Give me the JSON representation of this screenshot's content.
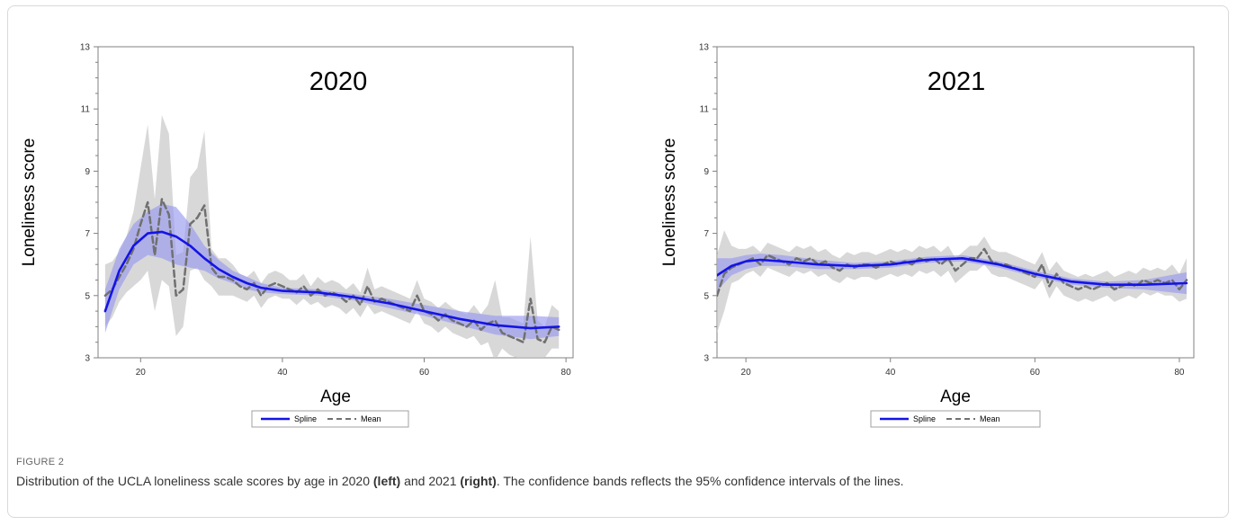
{
  "figure": {
    "label": "FIGURE 2",
    "caption_parts": [
      {
        "text": "Distribution of the UCLA loneliness scale scores by age in 2020 ",
        "bold": false
      },
      {
        "text": "(left)",
        "bold": true
      },
      {
        "text": " and 2021 ",
        "bold": false
      },
      {
        "text": "(right)",
        "bold": true
      },
      {
        "text": ". The confidence bands reflects the 95% confidence intervals of the lines.",
        "bold": false
      }
    ]
  },
  "colors": {
    "spline": "#1414e6",
    "spline_band": "#9a9af0",
    "mean": "#707070",
    "mean_band": "#c8c8c8",
    "axis": "#808080"
  },
  "chart_data": [
    {
      "type": "line",
      "title": "2020",
      "xlabel": "Age",
      "ylabel": "Loneliness score",
      "xlim": [
        14,
        81
      ],
      "ylim": [
        3,
        13
      ],
      "xticks": [
        20,
        40,
        60,
        80
      ],
      "yticks": [
        3,
        5,
        7,
        9,
        11,
        13
      ],
      "legend": {
        "position": "bottom-center",
        "entries": [
          "Spline",
          "Mean"
        ]
      },
      "series": [
        {
          "name": "Spline",
          "style": "solid",
          "x": [
            15,
            17,
            19,
            21,
            23,
            25,
            27,
            29,
            31,
            33,
            35,
            37,
            40,
            45,
            50,
            55,
            60,
            65,
            70,
            75,
            79
          ],
          "y": [
            4.5,
            5.8,
            6.6,
            7.0,
            7.05,
            6.9,
            6.6,
            6.2,
            5.85,
            5.6,
            5.4,
            5.25,
            5.15,
            5.1,
            4.95,
            4.75,
            4.5,
            4.25,
            4.05,
            3.95,
            4.0
          ],
          "ci_lower": [
            3.8,
            5.2,
            6.0,
            6.3,
            6.2,
            6.0,
            5.9,
            5.8,
            5.55,
            5.4,
            5.2,
            5.1,
            5.05,
            5.0,
            4.85,
            4.6,
            4.35,
            4.05,
            3.75,
            3.6,
            3.7
          ],
          "ci_upper": [
            5.2,
            6.5,
            7.3,
            7.7,
            7.95,
            7.85,
            7.3,
            6.6,
            6.15,
            5.8,
            5.6,
            5.4,
            5.25,
            5.2,
            5.05,
            4.9,
            4.7,
            4.5,
            4.35,
            4.35,
            4.3
          ]
        },
        {
          "name": "Mean",
          "style": "dashed",
          "x": [
            15,
            16,
            17,
            18,
            19,
            20,
            21,
            22,
            23,
            24,
            25,
            26,
            27,
            28,
            29,
            30,
            31,
            32,
            33,
            34,
            35,
            36,
            37,
            38,
            39,
            40,
            41,
            42,
            43,
            44,
            45,
            46,
            47,
            48,
            49,
            50,
            51,
            52,
            53,
            54,
            55,
            56,
            57,
            58,
            59,
            60,
            61,
            62,
            63,
            64,
            65,
            66,
            67,
            68,
            69,
            70,
            71,
            72,
            73,
            74,
            75,
            76,
            77,
            78,
            79
          ],
          "y": [
            5.0,
            5.2,
            5.6,
            6.0,
            6.5,
            7.3,
            8.0,
            6.3,
            8.1,
            7.6,
            5.0,
            5.2,
            7.3,
            7.5,
            7.9,
            5.9,
            5.6,
            5.6,
            5.5,
            5.3,
            5.2,
            5.4,
            5.0,
            5.3,
            5.4,
            5.3,
            5.2,
            5.1,
            5.3,
            5.0,
            5.2,
            5.0,
            5.1,
            5.0,
            4.8,
            5.0,
            4.7,
            5.3,
            4.8,
            4.9,
            4.8,
            4.7,
            4.6,
            4.5,
            5.0,
            4.5,
            4.4,
            4.2,
            4.4,
            4.2,
            4.1,
            4.0,
            4.2,
            3.9,
            4.1,
            4.2,
            3.8,
            3.7,
            3.6,
            3.5,
            4.9,
            3.6,
            3.5,
            4.0,
            3.9
          ],
          "ci_lower": [
            4.0,
            4.3,
            4.8,
            5.1,
            5.3,
            5.5,
            5.8,
            4.5,
            5.5,
            5.3,
            3.7,
            4.0,
            5.8,
            5.9,
            5.5,
            5.3,
            5.0,
            5.0,
            5.0,
            4.9,
            4.8,
            5.0,
            4.6,
            4.9,
            5.0,
            4.9,
            4.9,
            4.7,
            4.9,
            4.7,
            4.8,
            4.6,
            4.7,
            4.6,
            4.4,
            4.6,
            4.3,
            4.7,
            4.4,
            4.5,
            4.4,
            4.3,
            4.2,
            4.1,
            4.5,
            4.1,
            4.0,
            3.8,
            4.0,
            3.8,
            3.7,
            3.6,
            3.7,
            3.4,
            3.5,
            2.9,
            3.3,
            3.1,
            3.0,
            2.9,
            3.0,
            3.0,
            3.0,
            3.3,
            3.3
          ],
          "ci_upper": [
            6.0,
            6.1,
            6.4,
            6.9,
            7.7,
            9.1,
            10.5,
            8.1,
            10.8,
            10.2,
            6.3,
            6.4,
            8.8,
            9.1,
            10.3,
            6.5,
            6.2,
            6.2,
            6.0,
            5.7,
            5.6,
            5.8,
            5.4,
            5.7,
            5.8,
            5.7,
            5.5,
            5.5,
            5.7,
            5.3,
            5.6,
            5.4,
            5.5,
            5.4,
            5.2,
            5.4,
            5.1,
            5.9,
            5.2,
            5.3,
            5.2,
            5.1,
            5.0,
            4.9,
            5.5,
            4.9,
            4.8,
            4.6,
            4.8,
            4.6,
            4.5,
            4.4,
            4.7,
            4.4,
            4.7,
            5.5,
            4.3,
            4.3,
            4.2,
            4.1,
            6.9,
            4.2,
            4.0,
            4.7,
            4.5
          ]
        }
      ]
    },
    {
      "type": "line",
      "title": "2021",
      "xlabel": "Age",
      "ylabel": "Loneliness score",
      "xlim": [
        16,
        82
      ],
      "ylim": [
        3,
        13
      ],
      "xticks": [
        20,
        40,
        60,
        80
      ],
      "yticks": [
        3,
        5,
        7,
        9,
        11,
        13
      ],
      "legend": {
        "position": "bottom-center",
        "entries": [
          "Spline",
          "Mean"
        ]
      },
      "series": [
        {
          "name": "Spline",
          "style": "solid",
          "x": [
            16,
            18,
            20,
            22,
            25,
            30,
            35,
            40,
            45,
            50,
            55,
            60,
            65,
            70,
            75,
            81
          ],
          "y": [
            5.65,
            5.95,
            6.1,
            6.15,
            6.1,
            6.0,
            5.95,
            6.0,
            6.15,
            6.2,
            6.0,
            5.7,
            5.45,
            5.35,
            5.35,
            5.4
          ],
          "ci_lower": [
            5.15,
            5.65,
            5.85,
            5.95,
            5.95,
            5.85,
            5.85,
            5.9,
            6.05,
            6.1,
            5.9,
            5.6,
            5.35,
            5.25,
            5.2,
            5.05
          ],
          "ci_upper": [
            6.2,
            6.2,
            6.3,
            6.35,
            6.3,
            6.15,
            6.05,
            6.1,
            6.25,
            6.3,
            6.1,
            5.8,
            5.55,
            5.45,
            5.5,
            5.75
          ]
        },
        {
          "name": "Mean",
          "style": "dashed",
          "x": [
            16,
            17,
            18,
            19,
            20,
            21,
            22,
            23,
            24,
            25,
            26,
            27,
            28,
            29,
            30,
            31,
            32,
            33,
            34,
            35,
            36,
            37,
            38,
            39,
            40,
            41,
            42,
            43,
            44,
            45,
            46,
            47,
            48,
            49,
            50,
            51,
            52,
            53,
            54,
            55,
            56,
            57,
            58,
            59,
            60,
            61,
            62,
            63,
            64,
            65,
            66,
            67,
            68,
            69,
            70,
            71,
            72,
            73,
            74,
            75,
            76,
            77,
            78,
            79,
            80,
            81
          ],
          "y": [
            5.0,
            5.7,
            5.9,
            6.0,
            6.1,
            6.2,
            6.0,
            6.3,
            6.2,
            6.1,
            6.0,
            6.2,
            6.1,
            6.2,
            6.0,
            6.1,
            5.9,
            5.8,
            6.0,
            5.9,
            6.0,
            6.0,
            5.9,
            6.0,
            6.1,
            6.0,
            6.1,
            6.0,
            6.2,
            6.1,
            6.2,
            6.0,
            6.2,
            5.8,
            6.0,
            6.2,
            6.2,
            6.5,
            6.1,
            6.0,
            6.0,
            5.9,
            5.8,
            5.7,
            5.6,
            6.0,
            5.3,
            5.7,
            5.4,
            5.3,
            5.2,
            5.3,
            5.2,
            5.3,
            5.4,
            5.2,
            5.3,
            5.4,
            5.3,
            5.5,
            5.4,
            5.5,
            5.4,
            5.5,
            5.2,
            5.5
          ],
          "ci_lower": [
            3.8,
            4.5,
            5.4,
            5.5,
            5.7,
            5.8,
            5.6,
            5.9,
            5.8,
            5.7,
            5.6,
            5.8,
            5.7,
            5.8,
            5.6,
            5.7,
            5.5,
            5.4,
            5.6,
            5.5,
            5.6,
            5.6,
            5.5,
            5.6,
            5.7,
            5.6,
            5.7,
            5.6,
            5.8,
            5.7,
            5.8,
            5.6,
            5.8,
            5.4,
            5.6,
            5.8,
            5.8,
            6.0,
            5.7,
            5.6,
            5.6,
            5.5,
            5.4,
            5.3,
            5.2,
            5.5,
            4.9,
            5.3,
            5.0,
            4.9,
            4.8,
            4.9,
            4.8,
            4.9,
            5.0,
            4.8,
            4.9,
            5.0,
            4.9,
            5.1,
            5.0,
            5.1,
            5.0,
            5.0,
            4.8,
            4.9
          ],
          "ci_upper": [
            6.3,
            7.1,
            6.6,
            6.5,
            6.5,
            6.6,
            6.4,
            6.7,
            6.6,
            6.5,
            6.4,
            6.6,
            6.5,
            6.6,
            6.4,
            6.5,
            6.3,
            6.2,
            6.4,
            6.3,
            6.4,
            6.4,
            6.3,
            6.4,
            6.5,
            6.4,
            6.5,
            6.4,
            6.6,
            6.5,
            6.6,
            6.4,
            6.6,
            6.2,
            6.4,
            6.6,
            6.6,
            6.9,
            6.5,
            6.4,
            6.4,
            6.3,
            6.2,
            6.1,
            6.0,
            6.4,
            5.8,
            6.1,
            5.8,
            5.7,
            5.6,
            5.7,
            5.6,
            5.7,
            5.8,
            5.6,
            5.7,
            5.8,
            5.7,
            5.9,
            5.8,
            5.9,
            5.8,
            6.0,
            5.7,
            6.2
          ]
        }
      ]
    }
  ]
}
